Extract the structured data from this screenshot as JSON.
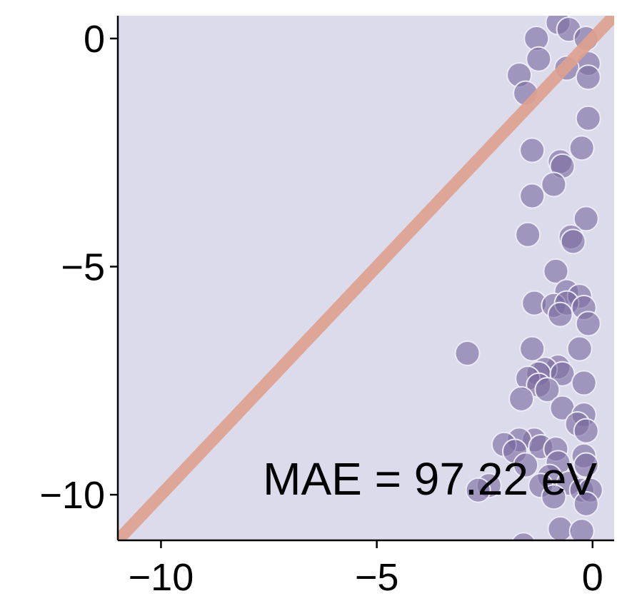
{
  "chart_data": {
    "type": "scatter",
    "title": "",
    "xlabel": "",
    "ylabel": "",
    "xlim": [
      -11,
      0.5
    ],
    "ylim": [
      -11,
      0.5
    ],
    "xticks": [
      -10,
      -5,
      0
    ],
    "yticks": [
      -10,
      -5,
      0
    ],
    "xtick_labels": [
      "−10",
      "−5",
      "0"
    ],
    "ytick_labels": [
      "−10",
      "−5",
      "0"
    ],
    "grid": false,
    "legend": "none",
    "annotation": "MAE = 97.22 eV",
    "reference_line": {
      "from": [
        -11,
        -11
      ],
      "to": [
        0.5,
        0.5
      ]
    },
    "colors": {
      "background": "#dcdbeb",
      "points": "#7a6aa0",
      "point_edge": "#ecebf5",
      "reference_line": "#dea08e"
    },
    "points": [
      [
        -0.8,
        0.35
      ],
      [
        -0.55,
        0.2
      ],
      [
        -1.3,
        0.0
      ],
      [
        -0.15,
        0.0
      ],
      [
        -1.25,
        -0.45
      ],
      [
        -0.1,
        -0.55
      ],
      [
        -0.6,
        -0.65
      ],
      [
        -1.7,
        -0.8
      ],
      [
        -0.1,
        -0.85
      ],
      [
        -1.55,
        -1.2
      ],
      [
        -0.1,
        -1.75
      ],
      [
        -1.4,
        -2.45
      ],
      [
        -0.25,
        -2.4
      ],
      [
        -0.75,
        -2.7
      ],
      [
        -0.7,
        -2.8
      ],
      [
        -0.9,
        -3.2
      ],
      [
        -1.4,
        -3.45
      ],
      [
        -0.15,
        -3.95
      ],
      [
        -1.5,
        -4.3
      ],
      [
        -0.5,
        -4.35
      ],
      [
        -0.45,
        -4.45
      ],
      [
        -0.85,
        -5.1
      ],
      [
        -0.6,
        -5.55
      ],
      [
        -0.3,
        -5.65
      ],
      [
        -1.35,
        -5.8
      ],
      [
        -0.9,
        -5.85
      ],
      [
        -0.6,
        -5.8
      ],
      [
        -0.2,
        -5.9
      ],
      [
        -0.75,
        -6.05
      ],
      [
        -0.1,
        -6.25
      ],
      [
        -2.9,
        -6.9
      ],
      [
        -1.4,
        -6.8
      ],
      [
        -0.3,
        -6.8
      ],
      [
        -0.8,
        -7.2
      ],
      [
        -1.1,
        -7.25
      ],
      [
        -1.25,
        -7.35
      ],
      [
        -0.7,
        -7.35
      ],
      [
        -1.5,
        -7.45
      ],
      [
        -1.25,
        -7.6
      ],
      [
        -0.2,
        -7.55
      ],
      [
        -1.05,
        -7.7
      ],
      [
        -1.65,
        -7.9
      ],
      [
        -0.7,
        -8.1
      ],
      [
        -0.2,
        -8.25
      ],
      [
        -0.35,
        -8.45
      ],
      [
        -0.15,
        -8.6
      ],
      [
        -1.35,
        -8.8
      ],
      [
        -1.7,
        -8.8
      ],
      [
        -2.05,
        -8.9
      ],
      [
        -1.2,
        -8.95
      ],
      [
        -0.85,
        -9.0
      ],
      [
        -1.8,
        -9.05
      ],
      [
        -0.2,
        -9.15
      ],
      [
        -0.8,
        -9.3
      ],
      [
        -1.55,
        -9.35
      ],
      [
        -0.15,
        -9.35
      ],
      [
        -1.0,
        -9.6
      ],
      [
        -1.2,
        -9.8
      ],
      [
        -0.55,
        -9.75
      ],
      [
        -2.4,
        -9.8
      ],
      [
        -2.65,
        -9.9
      ],
      [
        -0.25,
        -9.9
      ],
      [
        -0.05,
        -9.9
      ],
      [
        -0.9,
        -10.05
      ],
      [
        -0.15,
        -10.2
      ],
      [
        -0.75,
        -10.75
      ],
      [
        -0.25,
        -10.8
      ],
      [
        -1.6,
        -11.1
      ]
    ]
  }
}
